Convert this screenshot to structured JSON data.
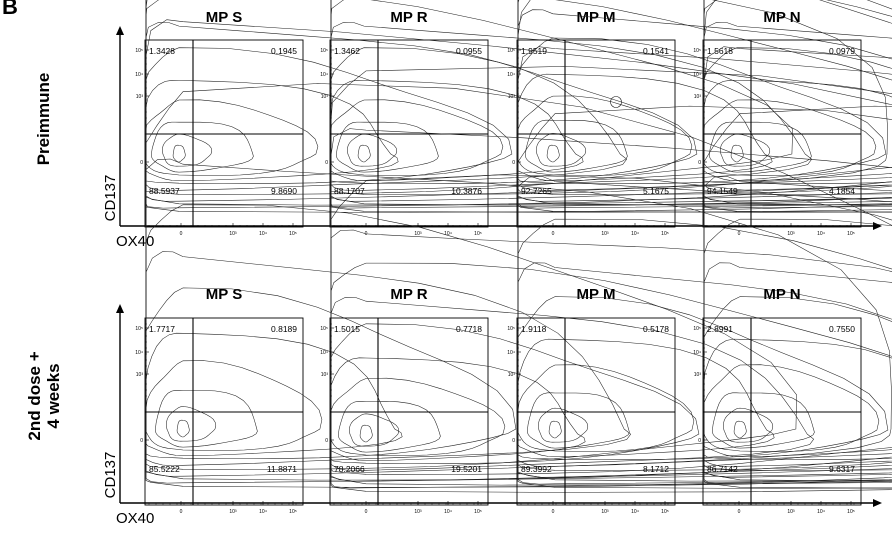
{
  "panel_letter": "B",
  "axis_labels": {
    "x": "OX40",
    "y": "CD137"
  },
  "row_labels": [
    {
      "lines": [
        "Preimmune"
      ]
    },
    {
      "lines": [
        "2nd dose +",
        "4 weeks"
      ]
    }
  ],
  "tick_labels": {
    "x": [
      "0",
      "10³",
      "10⁴",
      "10⁵"
    ],
    "y": [
      "10⁵",
      "10⁴",
      "10³",
      "0"
    ]
  },
  "chart_data": [
    {
      "type": "contour",
      "row": "Preimmune",
      "title": "MP S",
      "quadrants": {
        "upper_left": "1.3428",
        "upper_right": "0.1945",
        "lower_left": "88.5937",
        "lower_right": "9.8690"
      }
    },
    {
      "type": "contour",
      "row": "Preimmune",
      "title": "MP R",
      "quadrants": {
        "upper_left": "1.3462",
        "upper_right": "0.0955",
        "lower_left": "88.1707",
        "lower_right": "10.3876"
      }
    },
    {
      "type": "contour",
      "row": "Preimmune",
      "title": "MP M",
      "quadrants": {
        "upper_left": "1.9519",
        "upper_right": "0.1541",
        "lower_left": "92.7265",
        "lower_right": "5.1675"
      }
    },
    {
      "type": "contour",
      "row": "Preimmune",
      "title": "MP N",
      "quadrants": {
        "upper_left": "1.5618",
        "upper_right": "0.0979",
        "lower_left": "94.1549",
        "lower_right": "4.1854"
      }
    },
    {
      "type": "contour",
      "row": "2nd dose + 4 weeks",
      "title": "MP S",
      "quadrants": {
        "upper_left": "1.7717",
        "upper_right": "0.8189",
        "lower_left": "85.5222",
        "lower_right": "11.8871"
      }
    },
    {
      "type": "contour",
      "row": "2nd dose + 4 weeks",
      "title": "MP R",
      "quadrants": {
        "upper_left": "1.5015",
        "upper_right": "0.7718",
        "lower_left": "78.2066",
        "lower_right": "19.5201"
      }
    },
    {
      "type": "contour",
      "row": "2nd dose + 4 weeks",
      "title": "MP M",
      "quadrants": {
        "upper_left": "1.9118",
        "upper_right": "0.5178",
        "lower_left": "89.3992",
        "lower_right": "8.1712"
      }
    },
    {
      "type": "contour",
      "row": "2nd dose + 4 weeks",
      "title": "MP N",
      "quadrants": {
        "upper_left": "2.8991",
        "upper_right": "0.7550",
        "lower_left": "86.7142",
        "lower_right": "9.6317"
      }
    }
  ]
}
